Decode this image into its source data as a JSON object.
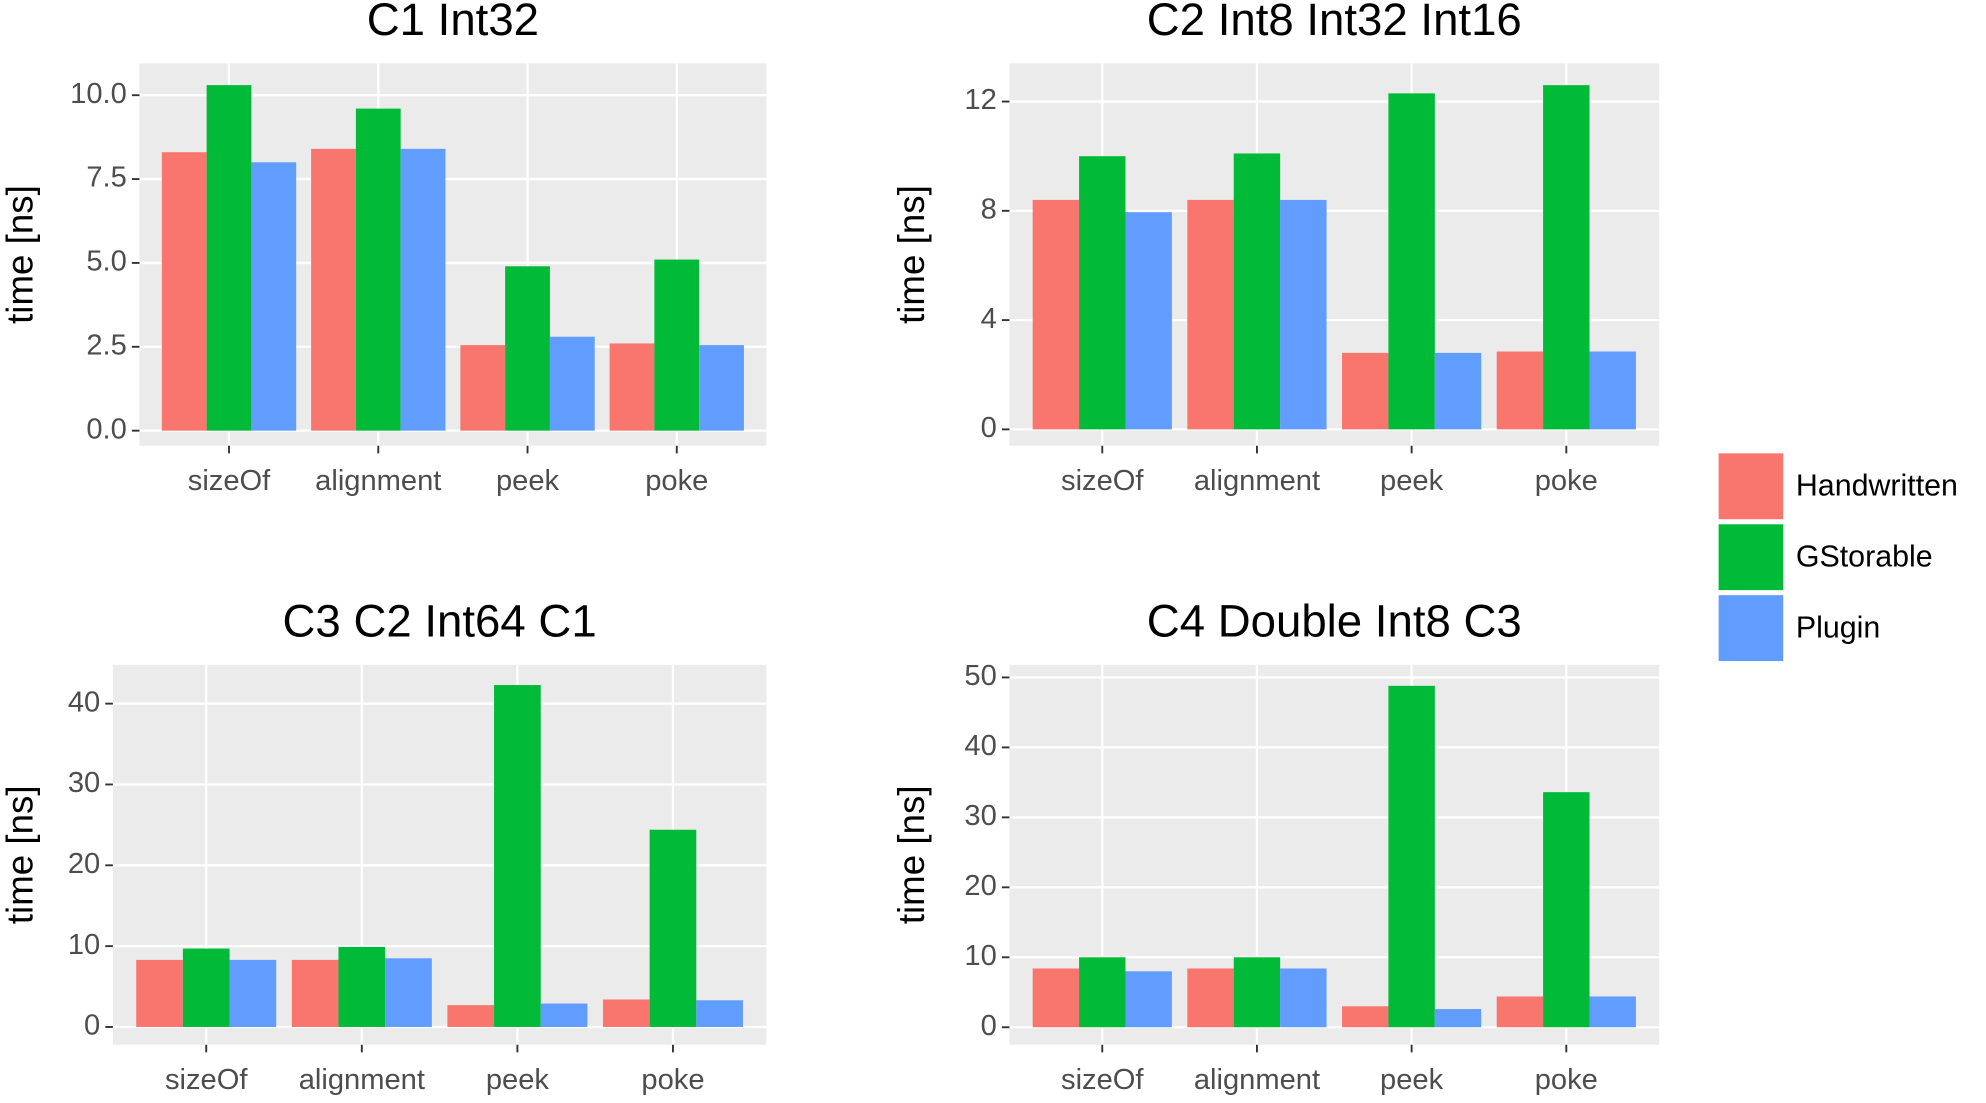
{
  "legend": {
    "entries": [
      {
        "name": "Handwritten",
        "color": "#F8766D"
      },
      {
        "name": "GStorable",
        "color": "#00BA38"
      },
      {
        "name": "Plugin",
        "color": "#619CFF"
      }
    ]
  },
  "chart_data": [
    {
      "type": "bar",
      "title": "C1 Int32",
      "y_label": "time [ns]",
      "categories": [
        "sizeOf",
        "alignment",
        "peek",
        "poke"
      ],
      "series": [
        {
          "values": [
            8.3,
            8.4,
            2.55,
            2.6
          ]
        },
        {
          "values": [
            10.3,
            9.6,
            4.9,
            5.1
          ]
        },
        {
          "values": [
            8.0,
            8.4,
            2.8,
            2.55
          ]
        }
      ],
      "ylim": [
        -0.45,
        10.95
      ],
      "yticks": [
        {
          "value": 0,
          "label": "0.0"
        },
        {
          "value": 2.5,
          "label": "2.5"
        },
        {
          "value": 5,
          "label": "5.0"
        },
        {
          "value": 7.5,
          "label": "7.5"
        },
        {
          "value": 10,
          "label": "10.0"
        }
      ]
    },
    {
      "type": "bar",
      "title": "C2 Int8 Int32 Int16",
      "y_label": "time [ns]",
      "categories": [
        "sizeOf",
        "alignment",
        "peek",
        "poke"
      ],
      "series": [
        {
          "values": [
            8.4,
            8.4,
            2.8,
            2.85
          ]
        },
        {
          "values": [
            10.0,
            10.1,
            12.3,
            12.6
          ]
        },
        {
          "values": [
            7.95,
            8.4,
            2.8,
            2.85
          ]
        }
      ],
      "ylim": [
        -0.6,
        13.4
      ],
      "yticks": [
        0,
        4,
        8,
        12
      ]
    },
    {
      "type": "bar",
      "title": "C3 C2 Int64 C1",
      "y_label": "time [ns]",
      "categories": [
        "sizeOf",
        "alignment",
        "peek",
        "poke"
      ],
      "series": [
        {
          "values": [
            8.3,
            8.3,
            2.7,
            3.4
          ]
        },
        {
          "values": [
            9.7,
            9.9,
            42.3,
            24.4
          ]
        },
        {
          "values": [
            8.3,
            8.5,
            2.9,
            3.3
          ]
        }
      ],
      "ylim": [
        -2.2,
        44.8
      ],
      "yticks": [
        0,
        10,
        20,
        30,
        40
      ]
    },
    {
      "type": "bar",
      "title": "C4 Double Int8 C3",
      "y_label": "time [ns]",
      "categories": [
        "sizeOf",
        "alignment",
        "peek",
        "poke"
      ],
      "series": [
        {
          "values": [
            8.4,
            8.4,
            3.0,
            4.4
          ]
        },
        {
          "values": [
            10.0,
            10.0,
            48.8,
            33.6
          ]
        },
        {
          "values": [
            8.0,
            8.4,
            2.6,
            4.4
          ]
        }
      ],
      "ylim": [
        -2.5,
        51.8
      ],
      "yticks": [
        0,
        10,
        20,
        30,
        40,
        50
      ]
    }
  ]
}
